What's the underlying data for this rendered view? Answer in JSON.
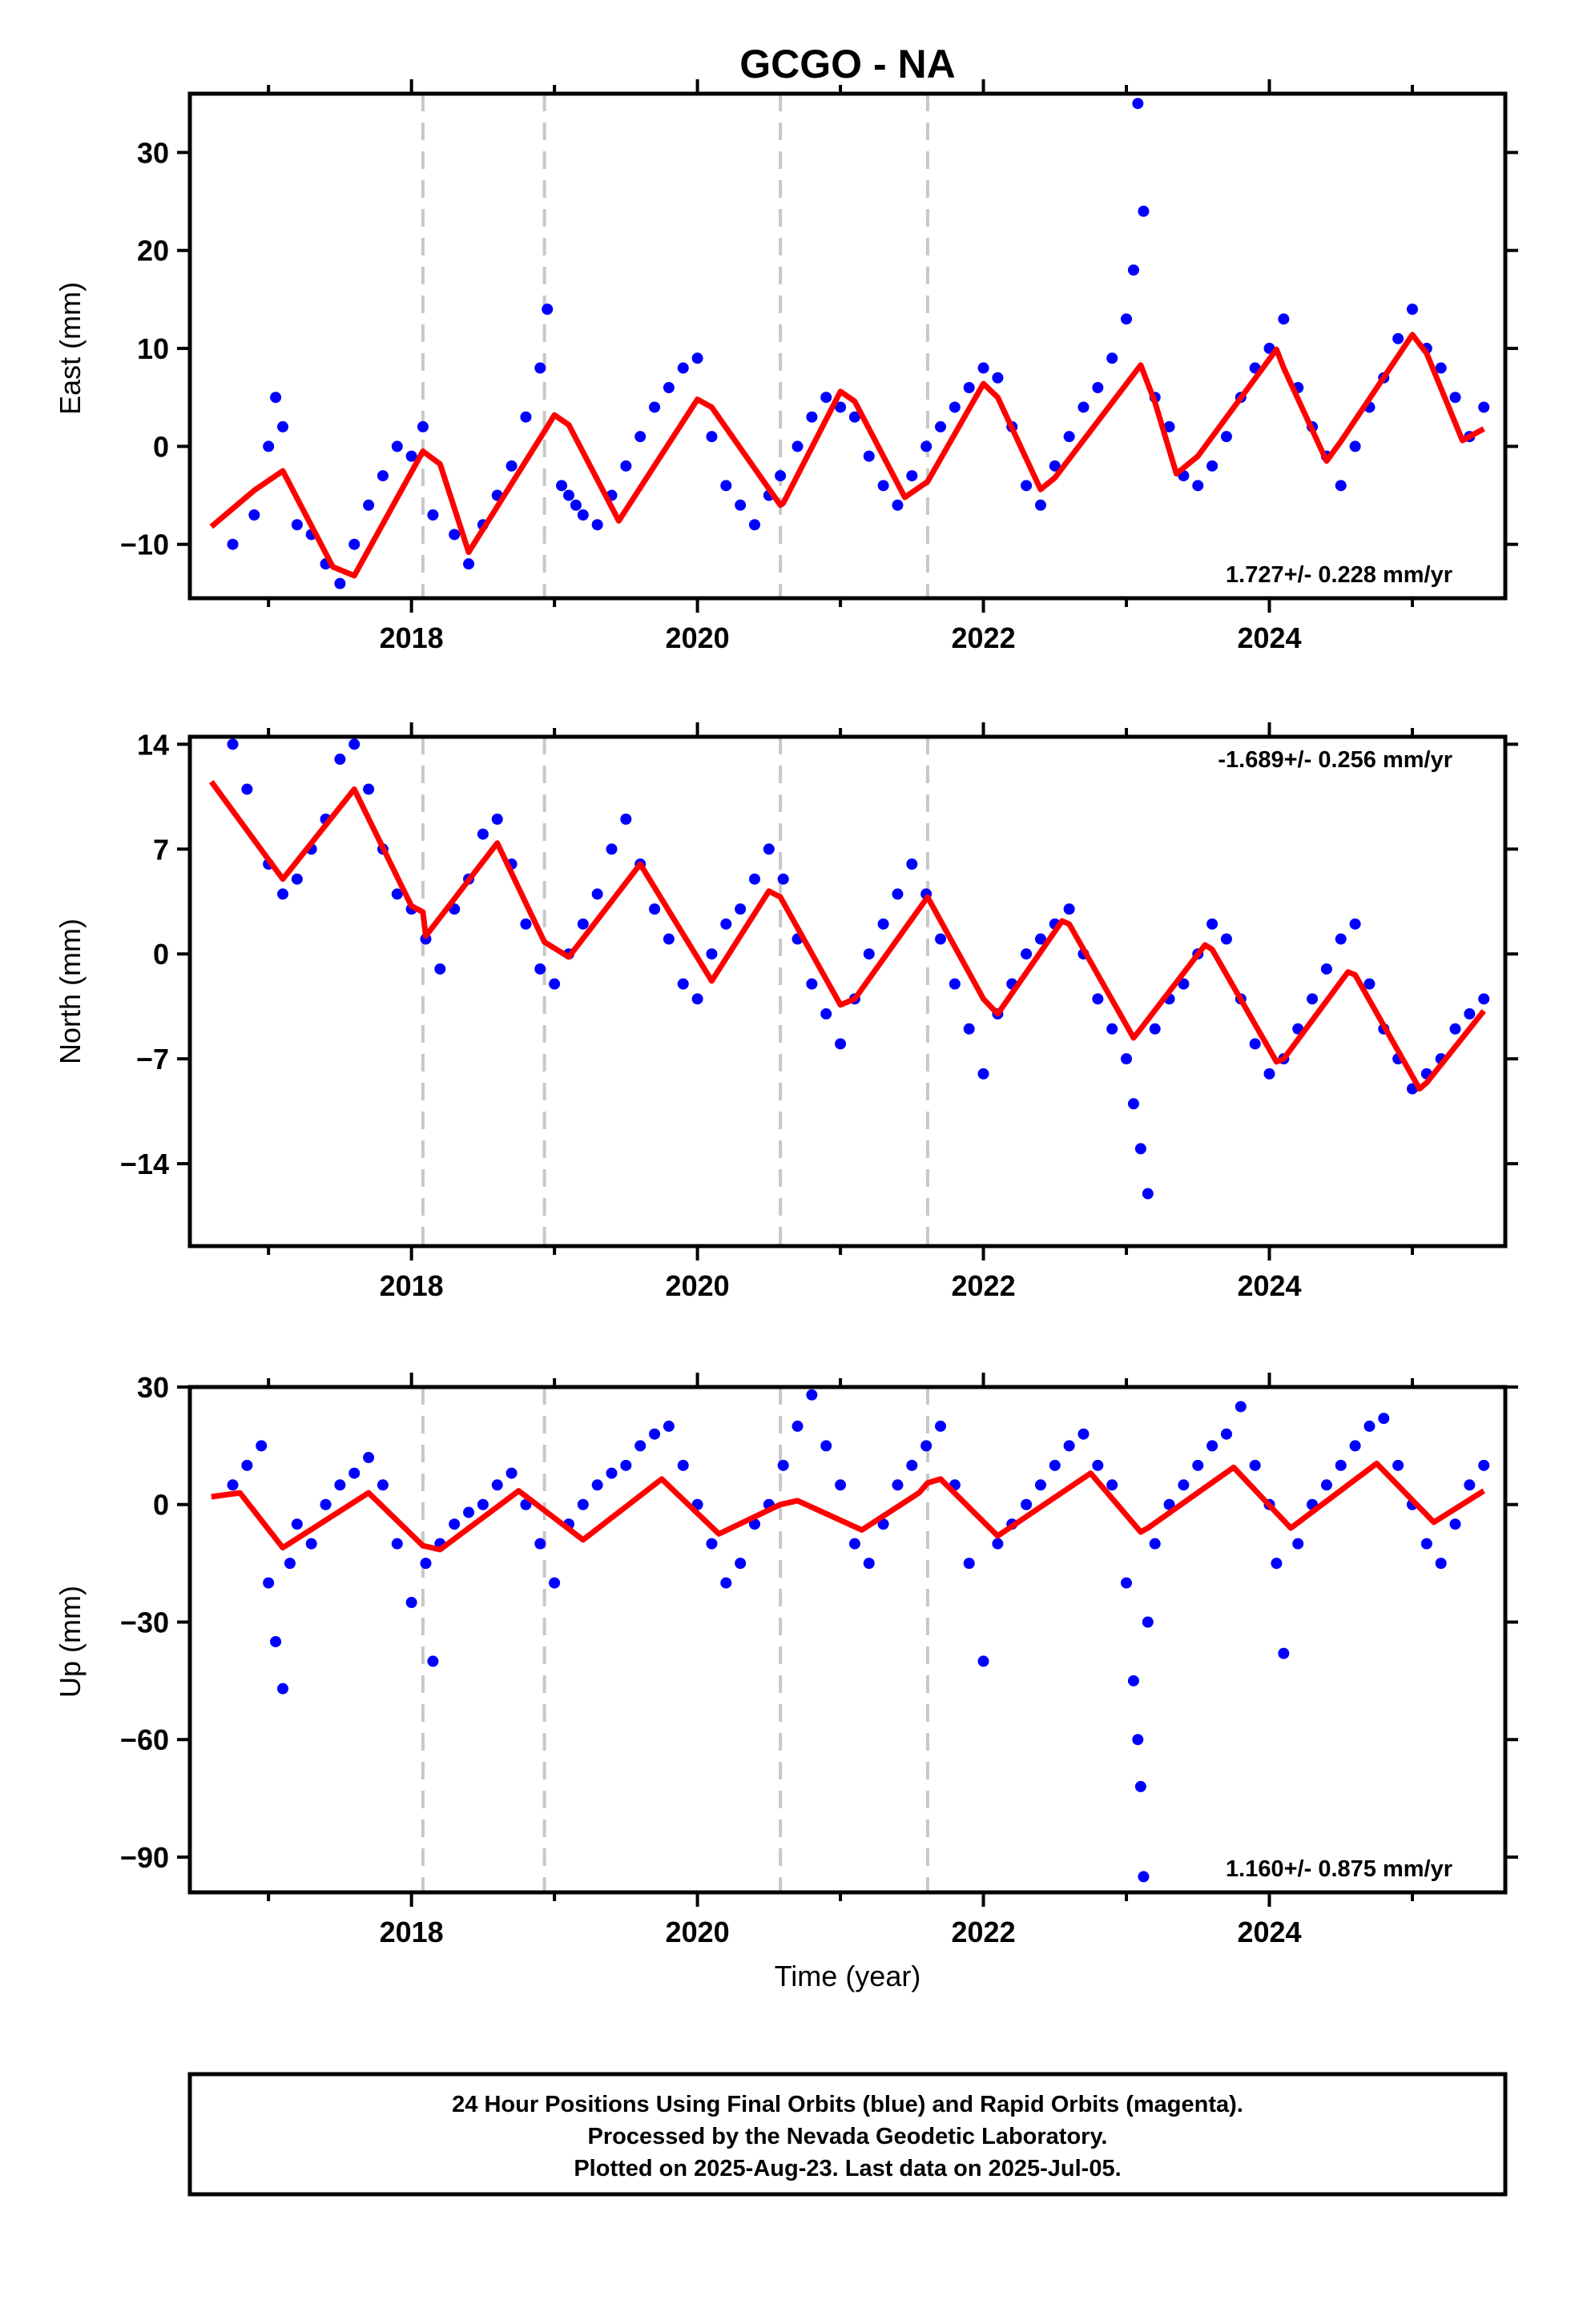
{
  "figure": {
    "title": "GCGO - NA",
    "footer_lines": [
      "24 Hour Positions Using Final Orbits (blue) and Rapid Orbits (magenta).",
      "Processed by the Nevada Geodetic Laboratory.",
      "Plotted on 2025-Aug-23. Last data on 2025-Jul-05."
    ]
  },
  "chart_data": [
    {
      "type": "scatter",
      "title": "",
      "xlabel": "",
      "ylabel": "East (mm)",
      "xlim": [
        2016.45,
        2025.65
      ],
      "ylim": [
        -15.5,
        36
      ],
      "xticks": [
        2018,
        2020,
        2022,
        2024
      ],
      "xtick_labels": [
        "2018",
        "2020",
        "2022",
        "2024"
      ],
      "yticks": [
        -10,
        0,
        10,
        20,
        30
      ],
      "ytick_labels": [
        "−10",
        "0",
        "10",
        "20",
        "30"
      ],
      "rate_annotation": "1.727+/- 0.228 mm/yr",
      "rate_placement": "bottom-right",
      "equipment_change_epochs": [
        2018.08,
        2018.93,
        2020.58,
        2021.61
      ],
      "series": [
        {
          "kind": "daily positions",
          "color": "#0000ff",
          "x": [
            2016.75,
            2016.9,
            2017.0,
            2017.05,
            2017.1,
            2017.2,
            2017.3,
            2017.4,
            2017.5,
            2017.6,
            2017.7,
            2017.8,
            2017.9,
            2018.0,
            2018.08,
            2018.15,
            2018.3,
            2018.4,
            2018.5,
            2018.6,
            2018.7,
            2018.8,
            2018.9,
            2018.95,
            2019.05,
            2019.1,
            2019.15,
            2019.2,
            2019.3,
            2019.4,
            2019.5,
            2019.6,
            2019.7,
            2019.8,
            2019.9,
            2020.0,
            2020.1,
            2020.2,
            2020.3,
            2020.4,
            2020.5,
            2020.58,
            2020.7,
            2020.8,
            2020.9,
            2021.0,
            2021.1,
            2021.2,
            2021.3,
            2021.4,
            2021.5,
            2021.6,
            2021.7,
            2021.8,
            2021.9,
            2022.0,
            2022.1,
            2022.2,
            2022.3,
            2022.4,
            2022.5,
            2022.6,
            2022.7,
            2022.8,
            2022.9,
            2023.0,
            2023.05,
            2023.08,
            2023.12,
            2023.2,
            2023.3,
            2023.4,
            2023.5,
            2023.6,
            2023.7,
            2023.8,
            2023.9,
            2024.0,
            2024.1,
            2024.2,
            2024.3,
            2024.4,
            2024.5,
            2024.6,
            2024.7,
            2024.8,
            2024.9,
            2025.0,
            2025.1,
            2025.2,
            2025.3,
            2025.4,
            2025.5
          ],
          "y": [
            -10,
            -7,
            0,
            5,
            2,
            -8,
            -9,
            -12,
            -14,
            -10,
            -6,
            -3,
            0,
            -1,
            2,
            -7,
            -9,
            -12,
            -8,
            -5,
            -2,
            3,
            8,
            14,
            -4,
            -5,
            -6,
            -7,
            -8,
            -5,
            -2,
            1,
            4,
            6,
            8,
            9,
            1,
            -4,
            -6,
            -8,
            -5,
            -3,
            0,
            3,
            5,
            4,
            3,
            -1,
            -4,
            -6,
            -3,
            0,
            2,
            4,
            6,
            8,
            7,
            2,
            -4,
            -6,
            -2,
            1,
            4,
            6,
            9,
            13,
            18,
            35,
            24,
            5,
            2,
            -3,
            -4,
            -2,
            1,
            5,
            8,
            10,
            13,
            6,
            2,
            -1,
            -4,
            0,
            4,
            7,
            11,
            14,
            10,
            8,
            5,
            1,
            4
          ]
        },
        {
          "kind": "model fit",
          "color": "#ff0000",
          "x": [
            2016.6,
            2016.9,
            2017.1,
            2017.45,
            2017.6,
            2018.08,
            2018.2,
            2018.4,
            2018.95,
            2019.0,
            2019.1,
            2019.45,
            2020.0,
            2020.1,
            2020.58,
            2020.6,
            2021.0,
            2021.1,
            2021.45,
            2021.61,
            2022.0,
            2022.1,
            2022.4,
            2022.5,
            2023.1,
            2023.2,
            2023.35,
            2023.5,
            2024.05,
            2024.1,
            2024.4,
            2024.5,
            2025.0,
            2025.1,
            2025.35,
            2025.5
          ],
          "y": [
            -8.2,
            -4.5,
            -2.5,
            -12.3,
            -13.2,
            -0.5,
            -1.8,
            -10.8,
            2.0,
            3.2,
            2.2,
            -7.6,
            4.8,
            4.0,
            -6.0,
            -5.8,
            5.6,
            4.6,
            -5.2,
            -3.6,
            6.4,
            5.0,
            -4.4,
            -3.2,
            8.3,
            4.5,
            -2.8,
            -1.0,
            9.9,
            8.0,
            -1.5,
            0.5,
            11.4,
            9.5,
            0.6,
            1.8
          ]
        }
      ]
    },
    {
      "type": "scatter",
      "title": "",
      "xlabel": "",
      "ylabel": "North (mm)",
      "xlim": [
        2016.45,
        2025.65
      ],
      "ylim": [
        -19.5,
        14.5
      ],
      "xticks": [
        2018,
        2020,
        2022,
        2024
      ],
      "xtick_labels": [
        "2018",
        "2020",
        "2022",
        "2024"
      ],
      "yticks": [
        -14,
        -7,
        0,
        7,
        14
      ],
      "ytick_labels": [
        "−14",
        "−7",
        "0",
        "7",
        "14"
      ],
      "rate_annotation": "-1.689+/- 0.256 mm/yr",
      "rate_placement": "top-right",
      "equipment_change_epochs": [
        2018.08,
        2018.93,
        2020.58,
        2021.61
      ],
      "series": [
        {
          "kind": "daily positions",
          "color": "#0000ff",
          "x": [
            2016.75,
            2016.85,
            2017.0,
            2017.1,
            2017.2,
            2017.3,
            2017.4,
            2017.5,
            2017.6,
            2017.7,
            2017.8,
            2017.9,
            2018.0,
            2018.1,
            2018.2,
            2018.3,
            2018.4,
            2018.5,
            2018.6,
            2018.7,
            2018.8,
            2018.9,
            2019.0,
            2019.1,
            2019.2,
            2019.3,
            2019.4,
            2019.5,
            2019.6,
            2019.7,
            2019.8,
            2019.9,
            2020.0,
            2020.1,
            2020.2,
            2020.3,
            2020.4,
            2020.5,
            2020.6,
            2020.7,
            2020.8,
            2020.9,
            2021.0,
            2021.1,
            2021.2,
            2021.3,
            2021.4,
            2021.5,
            2021.6,
            2021.7,
            2021.8,
            2021.9,
            2022.0,
            2022.1,
            2022.2,
            2022.3,
            2022.4,
            2022.5,
            2022.6,
            2022.7,
            2022.8,
            2022.9,
            2023.0,
            2023.05,
            2023.1,
            2023.15,
            2023.2,
            2023.3,
            2023.4,
            2023.5,
            2023.6,
            2023.7,
            2023.8,
            2023.9,
            2024.0,
            2024.1,
            2024.2,
            2024.3,
            2024.4,
            2024.5,
            2024.6,
            2024.7,
            2024.8,
            2024.9,
            2025.0,
            2025.1,
            2025.2,
            2025.3,
            2025.4,
            2025.5
          ],
          "y": [
            14,
            11,
            6,
            4,
            5,
            7,
            9,
            13,
            14,
            11,
            7,
            4,
            3,
            1,
            -1,
            3,
            5,
            8,
            9,
            6,
            2,
            -1,
            -2,
            0,
            2,
            4,
            7,
            9,
            6,
            3,
            1,
            -2,
            -3,
            0,
            2,
            3,
            5,
            7,
            5,
            1,
            -2,
            -4,
            -6,
            -3,
            0,
            2,
            4,
            6,
            4,
            1,
            -2,
            -5,
            -8,
            -4,
            -2,
            0,
            1,
            2,
            3,
            0,
            -3,
            -5,
            -7,
            -10,
            -13,
            -16,
            -5,
            -3,
            -2,
            0,
            2,
            1,
            -3,
            -6,
            -8,
            -7,
            -5,
            -3,
            -1,
            1,
            2,
            -2,
            -5,
            -7,
            -9,
            -8,
            -7,
            -5,
            -4,
            -3
          ]
        },
        {
          "kind": "model fit",
          "color": "#ff0000",
          "x": [
            2016.6,
            2017.1,
            2017.6,
            2018.0,
            2018.08,
            2018.1,
            2018.6,
            2018.93,
            2019.1,
            2019.6,
            2020.1,
            2020.5,
            2020.58,
            2021.0,
            2021.1,
            2021.55,
            2021.61,
            2022.0,
            2022.1,
            2022.55,
            2022.6,
            2023.05,
            2023.1,
            2023.55,
            2023.6,
            2024.05,
            2024.1,
            2024.55,
            2024.6,
            2025.05,
            2025.1,
            2025.5
          ],
          "y": [
            11.5,
            5.0,
            11.0,
            3.2,
            2.8,
            1.2,
            7.4,
            0.8,
            -0.2,
            6.0,
            -1.8,
            4.2,
            3.8,
            -3.4,
            -3.0,
            3.0,
            3.8,
            -3.0,
            -4.0,
            2.2,
            2.0,
            -5.6,
            -5.0,
            0.6,
            0.3,
            -7.2,
            -7.0,
            -1.2,
            -1.4,
            -9.0,
            -8.6,
            -3.8
          ]
        }
      ]
    },
    {
      "type": "scatter",
      "title": "",
      "xlabel": "Time (year)",
      "ylabel": "Up (mm)",
      "xlim": [
        2016.45,
        2025.65
      ],
      "ylim": [
        -99,
        30
      ],
      "xticks": [
        2018,
        2020,
        2022,
        2024
      ],
      "xtick_labels": [
        "2018",
        "2020",
        "2022",
        "2024"
      ],
      "yticks": [
        -90,
        -60,
        -30,
        0,
        30
      ],
      "ytick_labels": [
        "−90",
        "−60",
        "−30",
        "0",
        "30"
      ],
      "rate_annotation": "1.160+/- 0.875 mm/yr",
      "rate_placement": "bottom-right",
      "equipment_change_epochs": [
        2018.08,
        2018.93,
        2020.58,
        2021.61
      ],
      "series": [
        {
          "kind": "daily positions",
          "color": "#0000ff",
          "x": [
            2016.75,
            2016.85,
            2016.95,
            2017.0,
            2017.05,
            2017.1,
            2017.15,
            2017.2,
            2017.3,
            2017.4,
            2017.5,
            2017.6,
            2017.7,
            2017.8,
            2017.9,
            2018.0,
            2018.1,
            2018.15,
            2018.2,
            2018.3,
            2018.4,
            2018.5,
            2018.6,
            2018.7,
            2018.8,
            2018.9,
            2019.0,
            2019.1,
            2019.2,
            2019.3,
            2019.4,
            2019.5,
            2019.6,
            2019.7,
            2019.8,
            2019.9,
            2020.0,
            2020.1,
            2020.2,
            2020.3,
            2020.4,
            2020.5,
            2020.6,
            2020.7,
            2020.8,
            2020.9,
            2021.0,
            2021.1,
            2021.2,
            2021.3,
            2021.4,
            2021.5,
            2021.6,
            2021.7,
            2021.8,
            2021.9,
            2022.0,
            2022.1,
            2022.2,
            2022.3,
            2022.4,
            2022.5,
            2022.6,
            2022.7,
            2022.8,
            2022.9,
            2023.0,
            2023.05,
            2023.08,
            2023.1,
            2023.12,
            2023.15,
            2023.2,
            2023.3,
            2023.4,
            2023.5,
            2023.6,
            2023.7,
            2023.8,
            2023.9,
            2024.0,
            2024.05,
            2024.1,
            2024.2,
            2024.3,
            2024.4,
            2024.5,
            2024.6,
            2024.7,
            2024.8,
            2024.9,
            2025.0,
            2025.1,
            2025.2,
            2025.3,
            2025.4,
            2025.5
          ],
          "y": [
            5,
            10,
            15,
            -20,
            -35,
            -47,
            -15,
            -5,
            -10,
            0,
            5,
            8,
            12,
            5,
            -10,
            -25,
            -15,
            -40,
            -10,
            -5,
            -2,
            0,
            5,
            8,
            0,
            -10,
            -20,
            -5,
            0,
            5,
            8,
            10,
            15,
            18,
            20,
            10,
            0,
            -10,
            -20,
            -15,
            -5,
            0,
            10,
            20,
            28,
            15,
            5,
            -10,
            -15,
            -5,
            5,
            10,
            15,
            20,
            5,
            -15,
            -40,
            -10,
            -5,
            0,
            5,
            10,
            15,
            18,
            10,
            5,
            -20,
            -45,
            -60,
            -72,
            -95,
            -30,
            -10,
            0,
            5,
            10,
            15,
            18,
            25,
            10,
            0,
            -15,
            -38,
            -10,
            0,
            5,
            10,
            15,
            20,
            22,
            10,
            0,
            -10,
            -15,
            -5,
            5,
            10
          ]
        },
        {
          "kind": "model fit",
          "color": "#ff0000",
          "x": [
            2016.6,
            2016.8,
            2017.1,
            2017.7,
            2018.08,
            2018.2,
            2018.75,
            2019.2,
            2019.75,
            2020.15,
            2020.58,
            2020.7,
            2021.15,
            2021.55,
            2021.61,
            2021.7,
            2022.1,
            2022.75,
            2023.1,
            2023.15,
            2023.75,
            2024.15,
            2024.75,
            2025.15,
            2025.5
          ],
          "y": [
            2.0,
            3.0,
            -11.0,
            3.0,
            -10.5,
            -11.5,
            3.5,
            -9.0,
            6.5,
            -7.5,
            0.0,
            1.0,
            -6.5,
            3.0,
            5.5,
            6.5,
            -8.0,
            8.0,
            -7.0,
            -6.0,
            9.5,
            -6.0,
            10.5,
            -4.5,
            3.5
          ]
        }
      ]
    }
  ]
}
